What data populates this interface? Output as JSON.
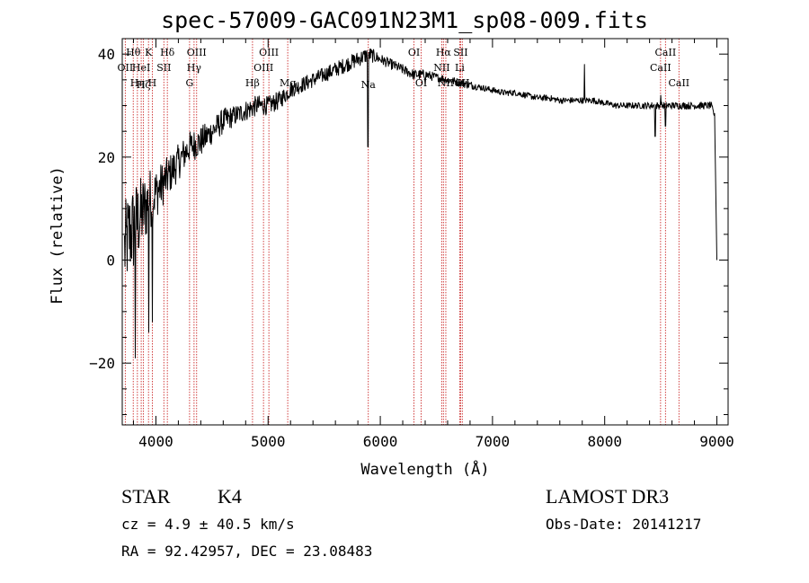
{
  "chart_data": {
    "type": "line",
    "title": "spec-57009-GAC091N23M1_sp08-009.fits",
    "xlabel": "Wavelength (Å)",
    "ylabel": "Flux (relative)",
    "xlim": [
      3700,
      9100
    ],
    "ylim": [
      -32,
      43
    ],
    "xticks": [
      4000,
      5000,
      6000,
      7000,
      8000,
      9000
    ],
    "xtick_labels": [
      "4000",
      "5000",
      "6000",
      "7000",
      "8000",
      "9000"
    ],
    "yticks": [
      -20,
      0,
      20,
      40
    ],
    "ytick_labels": [
      "−20",
      "0",
      "20",
      "40"
    ],
    "grid": false,
    "spectrum_anchors": {
      "x": [
        3720,
        3760,
        3800,
        3850,
        3900,
        3950,
        4000,
        4100,
        4200,
        4300,
        4400,
        4500,
        4600,
        4700,
        4800,
        4900,
        5000,
        5100,
        5200,
        5300,
        5400,
        5500,
        5600,
        5700,
        5800,
        5900,
        6000,
        6100,
        6200,
        6300,
        6400,
        6500,
        6600,
        6700,
        6800,
        6900,
        7000,
        7100,
        7200,
        7300,
        7400,
        7500,
        7600,
        7700,
        7800,
        7900,
        8000,
        8100,
        8200,
        8300,
        8400,
        8500,
        8600,
        8700,
        8800,
        8900,
        8950,
        8980,
        9000
      ],
      "y": [
        2,
        5,
        6,
        8,
        10,
        12,
        13,
        16,
        19,
        22,
        23,
        25,
        27,
        28,
        29,
        30,
        30,
        31,
        33,
        34,
        35,
        36,
        37,
        38,
        39,
        40,
        39,
        38,
        37,
        36,
        36,
        35.5,
        35,
        34.5,
        34,
        33.5,
        33,
        32.5,
        32.5,
        32,
        31.5,
        31.5,
        31,
        31,
        31,
        31,
        30.5,
        30,
        30,
        30,
        30,
        30,
        30,
        30,
        30,
        30,
        30,
        28,
        0
      ],
      "noise": [
        9,
        9,
        9,
        8,
        7,
        6,
        5,
        4,
        3.5,
        3,
        3,
        2.5,
        2.5,
        2,
        2,
        2,
        1.8,
        1.8,
        1.5,
        1.5,
        1.5,
        1.5,
        1.5,
        1.5,
        1.5,
        1.5,
        1,
        1,
        1,
        1,
        1,
        0.8,
        0.8,
        0.8,
        0.8,
        0.6,
        0.6,
        0.6,
        0.6,
        0.6,
        0.6,
        0.6,
        0.6,
        0.6,
        0.6,
        0.6,
        0.6,
        0.6,
        0.6,
        0.6,
        0.7,
        0.7,
        0.7,
        0.7,
        0.7,
        0.7,
        0.7,
        0.5,
        0
      ]
    },
    "spectrum_features": [
      {
        "x": 3815,
        "y": -19
      },
      {
        "x": 3935,
        "y": -14
      },
      {
        "x": 3968,
        "y": -12
      },
      {
        "x": 5890,
        "y": 22
      },
      {
        "x": 5895,
        "y": 40
      },
      {
        "x": 6400,
        "y": 34
      },
      {
        "x": 7820,
        "y": 38
      },
      {
        "x": 8450,
        "y": 24
      },
      {
        "x": 8500,
        "y": 32
      },
      {
        "x": 8542,
        "y": 26
      }
    ],
    "lines": [
      {
        "x": 3727,
        "label": "OII",
        "row": 1
      },
      {
        "x": 3798,
        "label": "Hθ",
        "row": 0
      },
      {
        "x": 3835,
        "label": "Hη",
        "row": 2
      },
      {
        "x": 3869,
        "label": "HeI",
        "row": 1
      },
      {
        "x": 3889,
        "label": "Hζ",
        "row": -1
      },
      {
        "x": 3934,
        "label": "K",
        "row": 0
      },
      {
        "x": 3968,
        "label": "H",
        "row": 2
      },
      {
        "x": 4071,
        "label": "SII",
        "row": 1
      },
      {
        "x": 4102,
        "label": "Hδ",
        "row": 0
      },
      {
        "x": 4300,
        "label": "G",
        "row": 2
      },
      {
        "x": 4340,
        "label": "Hγ",
        "row": 1
      },
      {
        "x": 4363,
        "label": "OIII",
        "row": 0
      },
      {
        "x": 4861,
        "label": "Hβ",
        "row": 2
      },
      {
        "x": 4959,
        "label": "OIII",
        "row": 1
      },
      {
        "x": 5007,
        "label": "OIII",
        "row": 0
      },
      {
        "x": 5175,
        "label": "Mg",
        "row": 2
      },
      {
        "x": 5893,
        "label": "Na",
        "row": -1
      },
      {
        "x": 6300,
        "label": "OI",
        "row": 0
      },
      {
        "x": 6364,
        "label": "OI",
        "row": 2
      },
      {
        "x": 6548,
        "label": "NII",
        "row": 1
      },
      {
        "x": 6563,
        "label": "Hα",
        "row": 0
      },
      {
        "x": 6584,
        "label": "NII",
        "row": 2
      },
      {
        "x": 6708,
        "label": "Li",
        "row": 1
      },
      {
        "x": 6716,
        "label": "SII",
        "row": 0
      },
      {
        "x": 6731,
        "label": "SII",
        "row": 2
      },
      {
        "x": 8498,
        "label": "CaII",
        "row": 1
      },
      {
        "x": 8542,
        "label": "CaII",
        "row": 0
      },
      {
        "x": 8662,
        "label": "CaII",
        "row": 2
      }
    ],
    "colors": {
      "spectrum": "#000000",
      "line_markers": "#cc2b2b",
      "axes": "#000000"
    }
  },
  "info": {
    "object_type": "STAR",
    "subclass": "K4",
    "survey": "LAMOST DR3",
    "redshift": "cz = 4.9 ± 40.5 km/s",
    "obs_date": "Obs-Date: 20141217",
    "coords": "RA =  92.42957, DEC =  23.08483"
  }
}
